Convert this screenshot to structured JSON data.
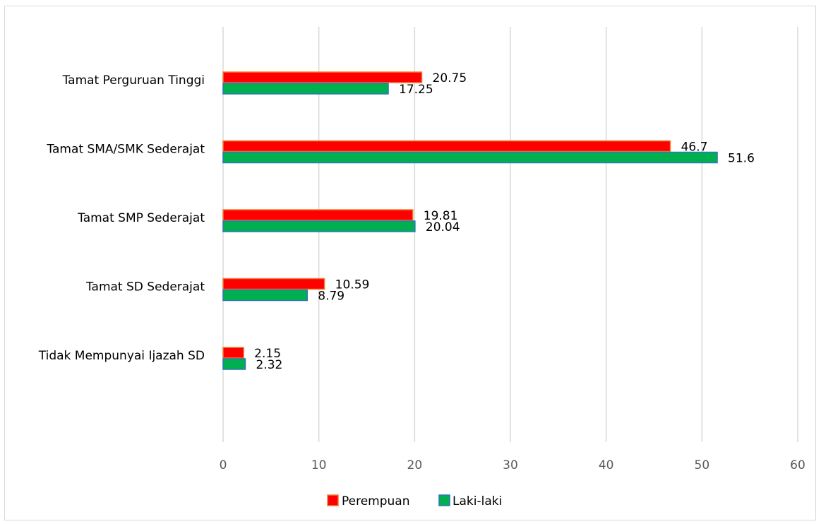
{
  "chart_data": {
    "type": "bar",
    "orientation": "horizontal",
    "title": "",
    "xlabel": "",
    "ylabel": "",
    "categories": [
      "Tamat Perguruan Tinggi",
      "Tamat SMA/SMK Sederajat",
      "Tamat SMP Sederajat",
      "Tamat SD Sederajat",
      "Tidak Mempunyai Ijazah SD"
    ],
    "series": [
      {
        "name": "Perempuan",
        "color": "#ff0000",
        "border_color": "#ed7d31",
        "values": [
          20.75,
          46.7,
          19.81,
          10.59,
          2.15
        ],
        "labels": [
          "20.75",
          "46.7",
          "19.81",
          "10.59",
          "2.15"
        ]
      },
      {
        "name": "Laki-laki",
        "color": "#00b050",
        "border_color": "#2e75b6",
        "values": [
          17.25,
          51.6,
          20.04,
          8.79,
          2.32
        ],
        "labels": [
          "17.25",
          "51.6",
          "20.04",
          "8.79",
          "2.32"
        ]
      }
    ],
    "xlim": [
      0,
      60
    ],
    "x_ticks": [
      0,
      10,
      20,
      30,
      40,
      50,
      60
    ],
    "x_tick_labels": [
      "0",
      "10",
      "20",
      "30",
      "40",
      "50",
      "60"
    ],
    "grid": "vertical",
    "gridline_color": "#d9d9d9",
    "legend_position": "bottom"
  }
}
